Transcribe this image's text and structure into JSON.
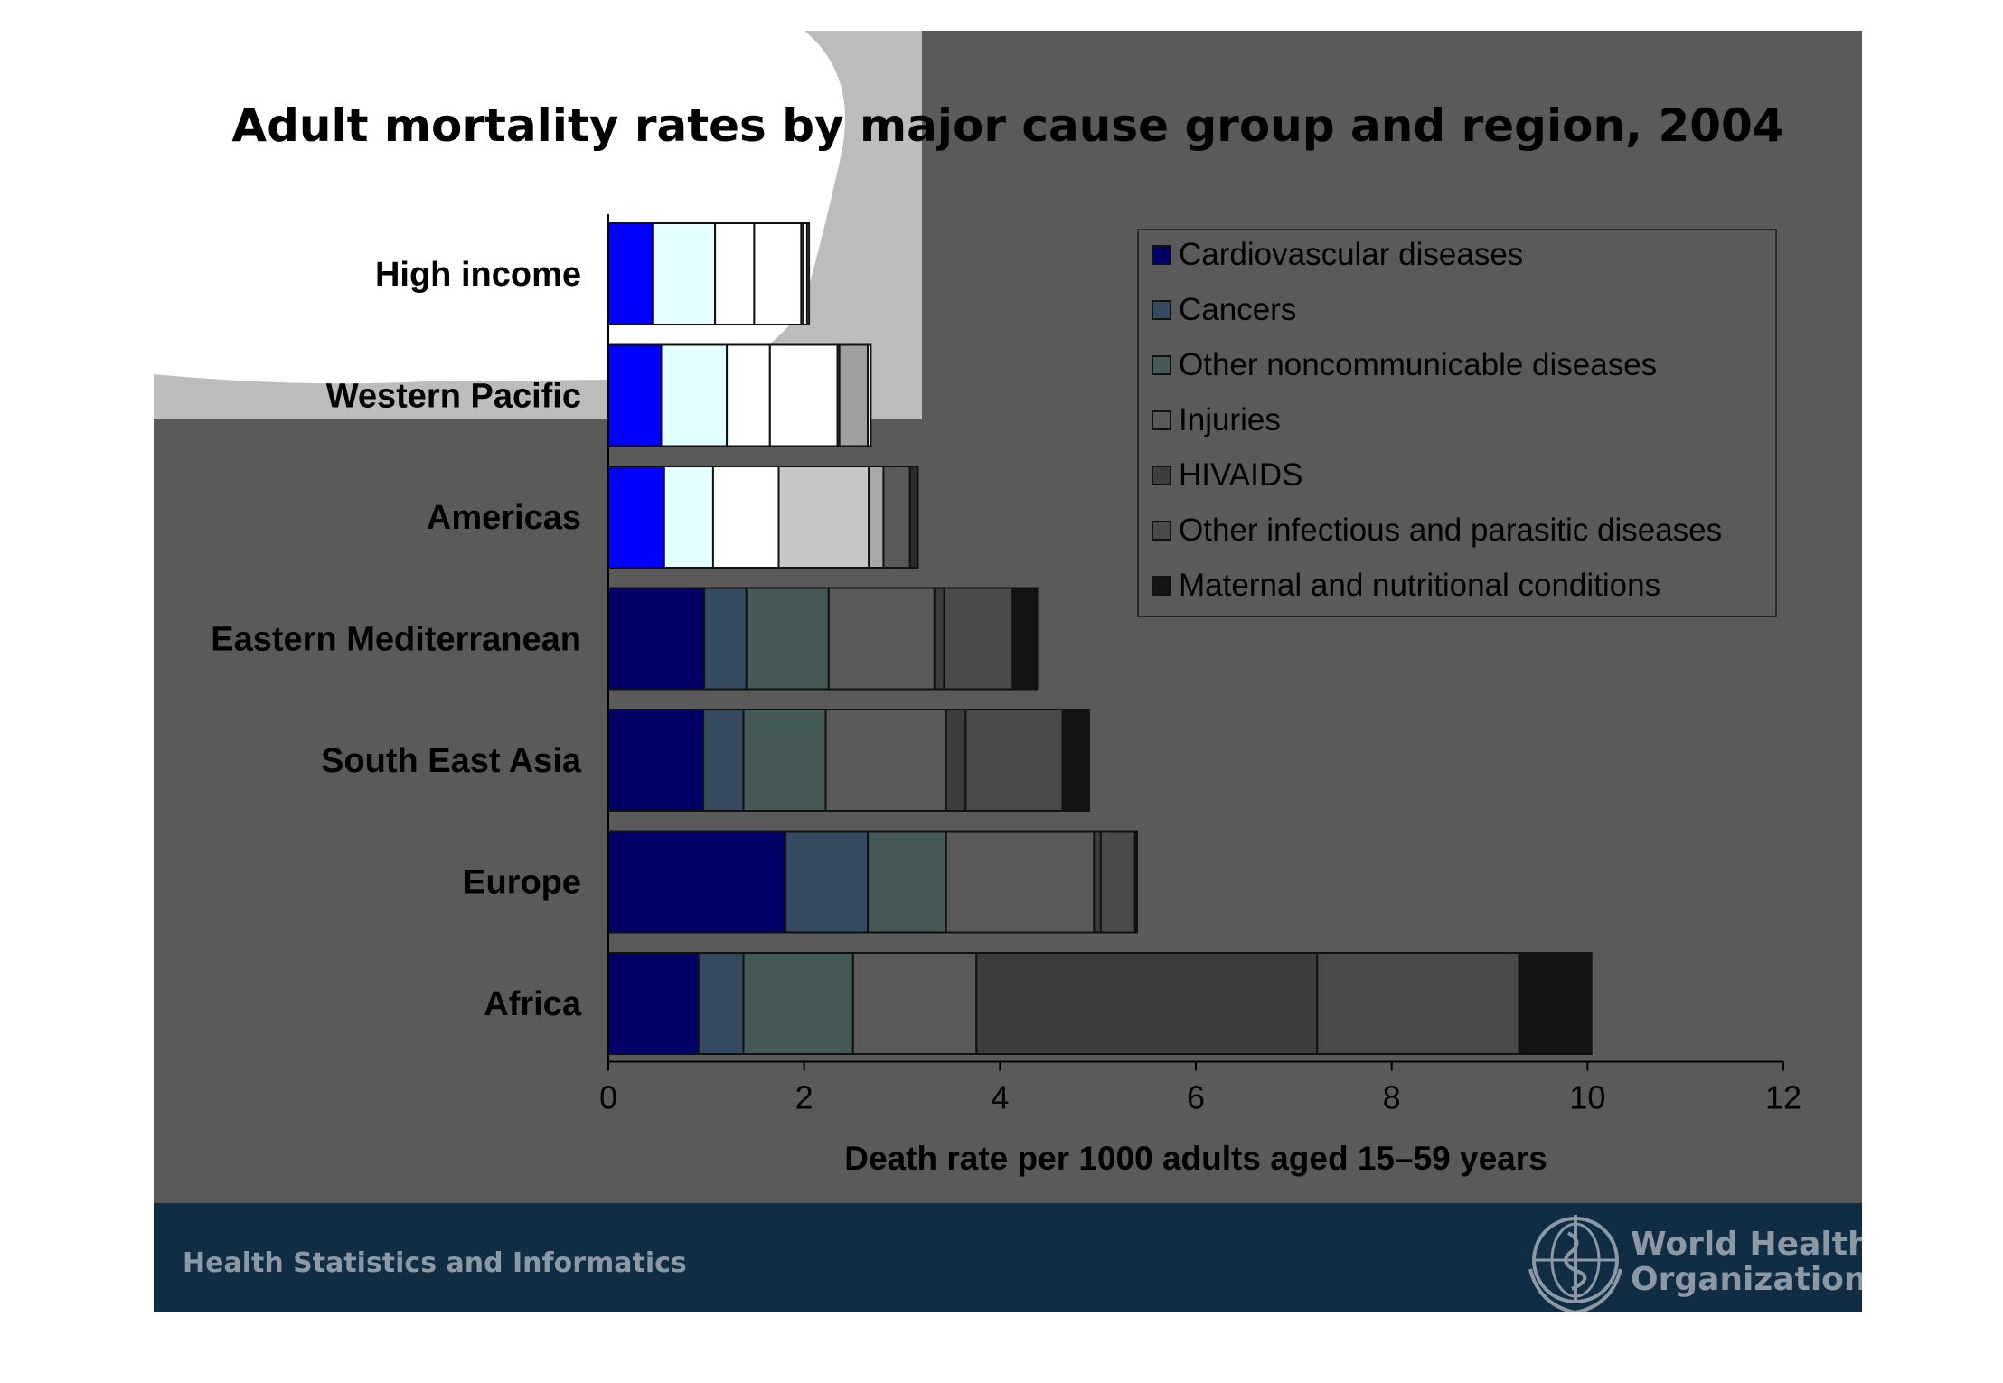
{
  "chart_data": {
    "type": "bar",
    "orientation": "horizontal",
    "stacked": true,
    "title": "Adult mortality rates by major cause group and region, 2004",
    "xlabel": "Death rate per 1000 adults aged 15–59 years",
    "ylabel": "",
    "xlim": [
      0,
      12
    ],
    "xticks": [
      0,
      2,
      4,
      6,
      8,
      10,
      12
    ],
    "grid": false,
    "legend_position": "top-right",
    "categories": [
      "High income",
      "Western Pacific",
      "Americas",
      "Eastern Mediterranean",
      "South East Asia",
      "Europe",
      "Africa"
    ],
    "series": [
      {
        "name": "Cardiovascular diseases",
        "color": "#000066",
        "values": [
          0.45,
          0.54,
          0.57,
          0.98,
          0.97,
          1.81,
          0.92
        ]
      },
      {
        "name": "Cancers",
        "color": "#354a5f",
        "values": [
          0.64,
          0.67,
          0.5,
          0.43,
          0.41,
          0.84,
          0.46
        ]
      },
      {
        "name": "Other noncommunicable diseases",
        "color": "#455957",
        "values": [
          0.4,
          0.44,
          0.67,
          0.84,
          0.84,
          0.8,
          1.12
        ]
      },
      {
        "name": "Injuries",
        "color": "#595959",
        "values": [
          0.48,
          0.69,
          0.92,
          1.08,
          1.23,
          1.51,
          1.26
        ]
      },
      {
        "name": "HIVAIDS",
        "color": "#3d3d3d",
        "values": [
          0.02,
          0.02,
          0.15,
          0.1,
          0.2,
          0.07,
          3.48
        ]
      },
      {
        "name": "Other infectious and parasitic diseases",
        "color": "#4a4a4a",
        "values": [
          0.04,
          0.29,
          0.27,
          0.7,
          0.99,
          0.35,
          2.06
        ]
      },
      {
        "name": "Maternal and nutritional conditions",
        "color": "#141414",
        "values": [
          0.02,
          0.03,
          0.08,
          0.25,
          0.27,
          0.02,
          0.74
        ]
      }
    ]
  },
  "footer": {
    "left_text": "Health Statistics and Informatics",
    "org_line1": "World Health",
    "org_line2": "Organization"
  },
  "colors": {
    "slide_background": "#5a5a5a",
    "footer_band": "#102d44",
    "highlight_overlay": "#ffffff"
  }
}
